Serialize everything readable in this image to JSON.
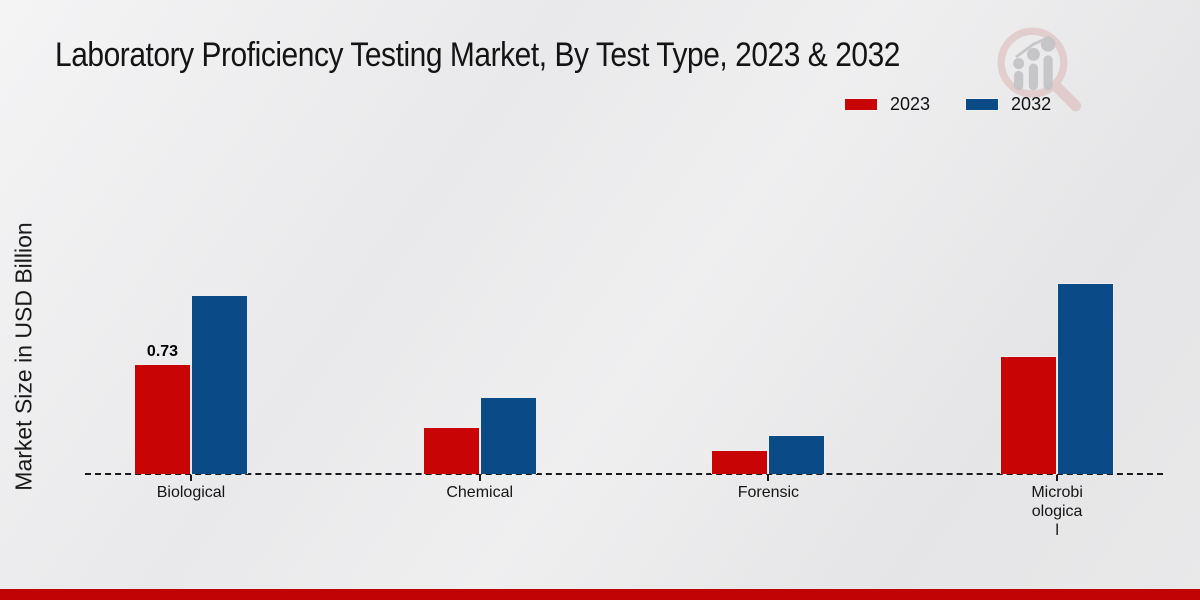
{
  "header": {
    "title": "Laboratory Proficiency Testing Market, By Test Type, 2023 & 2032"
  },
  "y_axis": {
    "label": "Market Size in USD Billion"
  },
  "legend": {
    "items": [
      {
        "label": "2023",
        "color": "#c90404"
      },
      {
        "label": "2032",
        "color": "#0a4a87"
      }
    ]
  },
  "colors": {
    "series_2023": "#c90404",
    "series_2032": "#0a4a87",
    "footer_band": "#c00404",
    "axis_line": "#1a1a1a",
    "background": "#e9e9ea",
    "logo_glass": "#dcb6b6",
    "logo_bars": "#c3c3c5"
  },
  "logo": {
    "icon": "magnifier-bar-chart-logo"
  },
  "chart_data": {
    "type": "bar",
    "title": "Laboratory Proficiency Testing Market, By Test Type, 2023 & 2032",
    "xlabel": "",
    "ylabel": "Market Size in USD Billion",
    "categories": [
      "Biological",
      "Chemical",
      "Forensic",
      "Microbiological"
    ],
    "category_display_lines": [
      [
        "Biological"
      ],
      [
        "Chemical"
      ],
      [
        "Forensic"
      ],
      [
        "Microbi",
        "ologica",
        "l"
      ]
    ],
    "series": [
      {
        "name": "2023",
        "color": "#c90404",
        "values": [
          0.73,
          0.31,
          0.16,
          0.78
        ]
      },
      {
        "name": "2032",
        "color": "#0a4a87",
        "values": [
          1.19,
          0.51,
          0.26,
          1.27
        ]
      }
    ],
    "annotations": [
      {
        "series": "2023",
        "category": "Biological",
        "text": "0.73"
      }
    ],
    "ylim": [
      0,
      1.4
    ],
    "baseline_value": 0,
    "grid": false,
    "legend_position": "top-right",
    "zero_line_style": "dashed"
  }
}
